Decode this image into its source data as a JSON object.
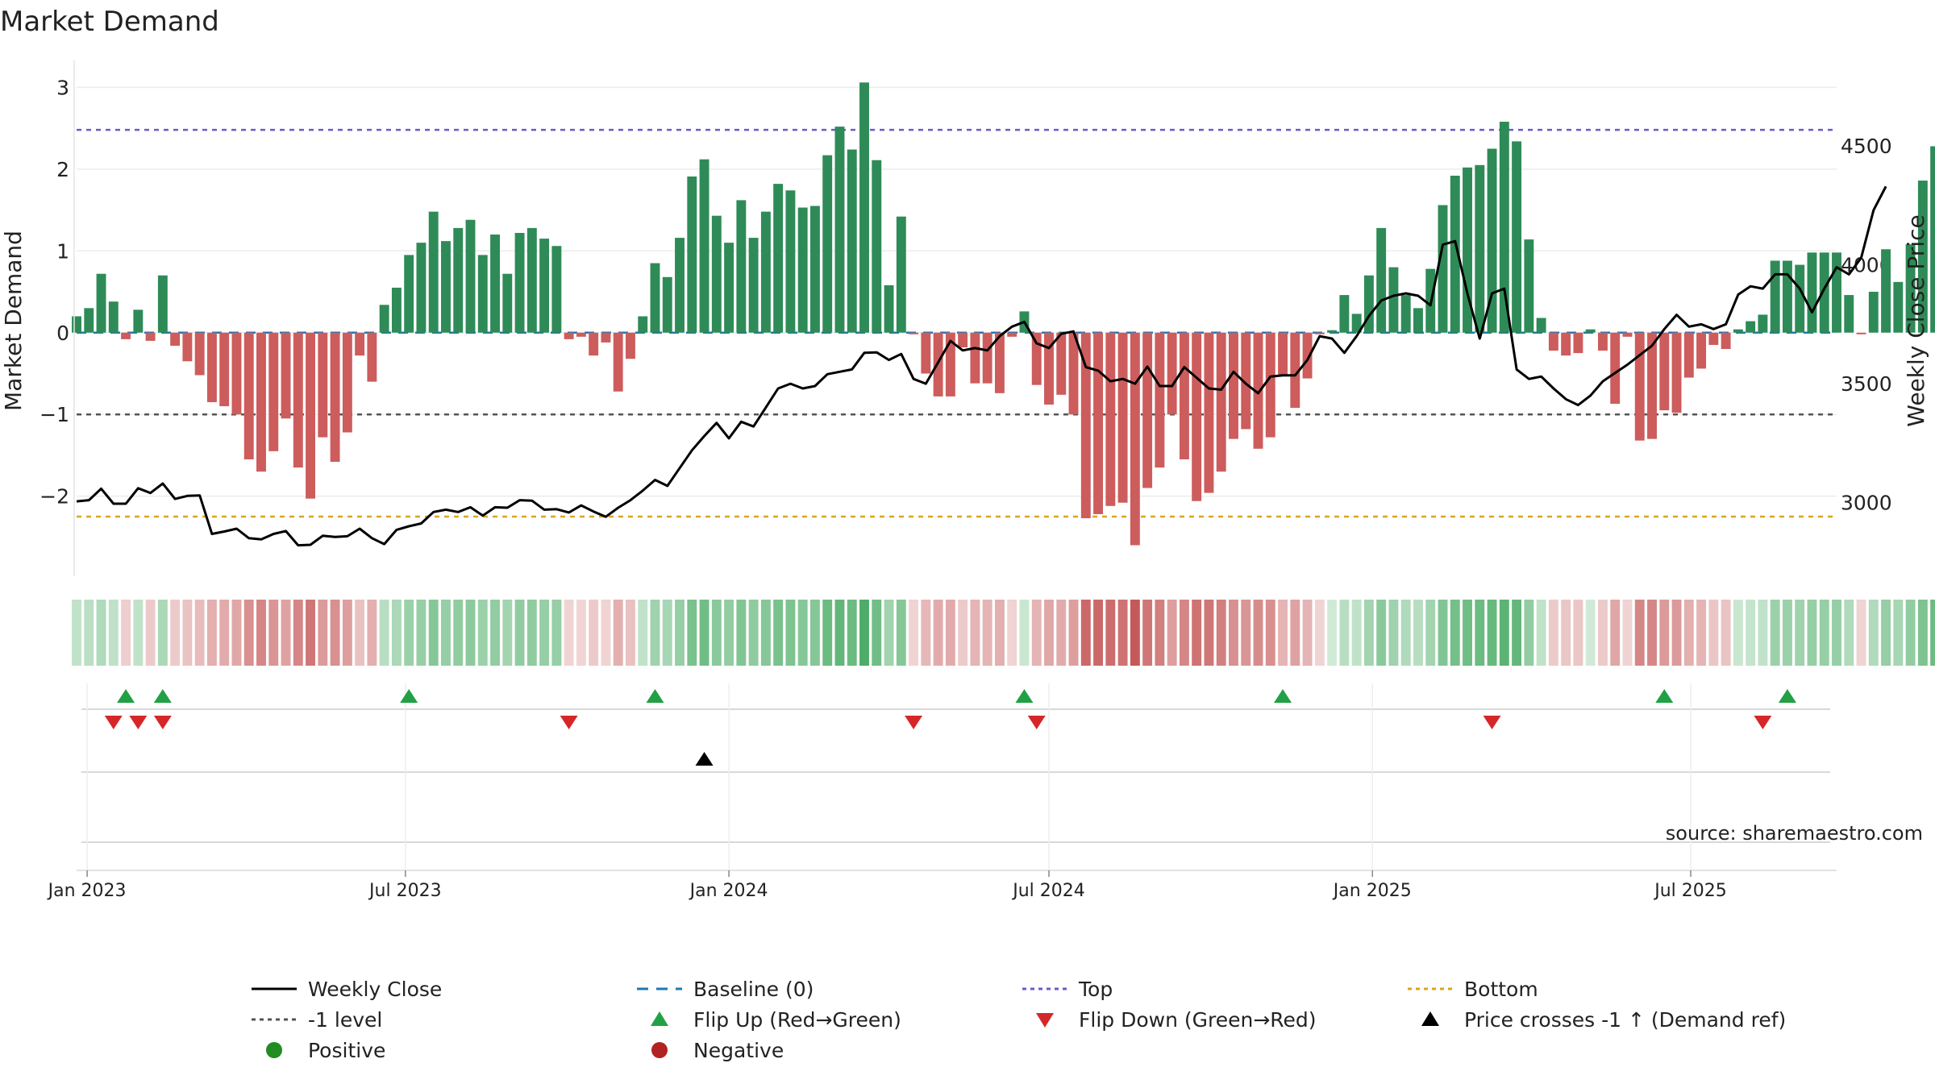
{
  "chart_data": {
    "type": "bar",
    "title": "Market Demand",
    "ylabel": "Market Demand",
    "y2label": "Weekly Close Price",
    "ylim": [
      -2.95,
      3.3
    ],
    "y2lim": [
      2700,
      4850
    ],
    "yticks": [
      3,
      2,
      1,
      0,
      -1,
      -2
    ],
    "ytick_labels": [
      "3",
      "2",
      "1",
      "0",
      "−1",
      "−2"
    ],
    "y2ticks": [
      4500,
      4000,
      3500,
      3000
    ],
    "y2tick_labels": [
      "4500",
      "4000",
      "3500",
      "3000"
    ],
    "x_start": "2022-12-26",
    "x_end": "2025-09-22",
    "xticks": [
      {
        "label": "Jan 2023",
        "date": "2023-01-01"
      },
      {
        "label": "Jul 2023",
        "date": "2023-07-01"
      },
      {
        "label": "Jan 2024",
        "date": "2024-01-01"
      },
      {
        "label": "Jul 2024",
        "date": "2024-07-01"
      },
      {
        "label": "Jan 2025",
        "date": "2025-01-01"
      },
      {
        "label": "Jul 2025",
        "date": "2025-07-01"
      }
    ],
    "weeks_start": "2022-12-26",
    "demand": [
      0.2,
      0.3,
      0.72,
      0.38,
      -0.08,
      0.28,
      -0.1,
      0.7,
      -0.16,
      -0.35,
      -0.52,
      -0.85,
      -0.9,
      -1.0,
      -1.55,
      -1.7,
      -1.45,
      -1.05,
      -1.65,
      -2.03,
      -1.28,
      -1.58,
      -1.22,
      -0.28,
      -0.6,
      0.34,
      0.55,
      0.95,
      1.1,
      1.48,
      1.12,
      1.28,
      1.38,
      0.95,
      1.2,
      0.72,
      1.22,
      1.28,
      1.15,
      1.06,
      -0.08,
      -0.05,
      -0.28,
      -0.12,
      -0.72,
      -0.32,
      0.2,
      0.85,
      0.68,
      1.16,
      1.91,
      2.12,
      1.43,
      1.1,
      1.62,
      1.16,
      1.48,
      1.82,
      1.74,
      1.53,
      1.55,
      2.17,
      2.52,
      2.24,
      3.06,
      2.11,
      0.58,
      1.42,
      -0.02,
      -0.5,
      -0.78,
      -0.78,
      -0.18,
      -0.62,
      -0.62,
      -0.74,
      -0.05,
      0.26,
      -0.64,
      -0.88,
      -0.76,
      -1.0,
      -2.27,
      -2.22,
      -2.12,
      -2.08,
      -2.6,
      -1.9,
      -1.65,
      -1.0,
      -1.55,
      -2.06,
      -1.96,
      -1.7,
      -1.3,
      -1.18,
      -1.42,
      -1.28,
      -0.52,
      -0.92,
      -0.56,
      -0.02,
      0.03,
      0.46,
      0.23,
      0.7,
      1.28,
      0.8,
      0.46,
      0.3,
      0.78,
      1.56,
      1.92,
      2.02,
      2.05,
      2.25,
      2.58,
      2.34,
      1.14,
      0.18,
      -0.22,
      -0.28,
      -0.25,
      0.04,
      -0.22,
      -0.87,
      -0.05,
      -1.32,
      -1.3,
      -0.95,
      -0.98,
      -0.55,
      -0.44,
      -0.15,
      -0.2,
      0.04,
      0.14,
      0.22,
      0.88,
      0.88,
      0.83,
      0.98,
      0.98,
      0.98,
      0.46,
      -0.02,
      0.5,
      1.02,
      0.62,
      1.08,
      1.86,
      2.28
    ],
    "weekly_close": [
      3005,
      3010,
      3058,
      2995,
      2995,
      3060,
      3040,
      3080,
      3015,
      3028,
      3030,
      2868,
      2878,
      2890,
      2850,
      2845,
      2868,
      2880,
      2820,
      2822,
      2860,
      2855,
      2858,
      2890,
      2850,
      2825,
      2885,
      2900,
      2912,
      2960,
      2970,
      2960,
      2980,
      2945,
      2980,
      2978,
      3010,
      3008,
      2970,
      2972,
      2958,
      2988,
      2962,
      2940,
      2978,
      3010,
      3050,
      3095,
      3070,
      3145,
      3220,
      3280,
      3335,
      3270,
      3340,
      3320,
      3400,
      3480,
      3500,
      3480,
      3490,
      3540,
      3550,
      3560,
      3630,
      3632,
      3600,
      3625,
      3520,
      3500,
      3590,
      3680,
      3640,
      3650,
      3640,
      3700,
      3740,
      3760,
      3670,
      3650,
      3710,
      3720,
      3570,
      3555,
      3510,
      3520,
      3500,
      3572,
      3490,
      3490,
      3570,
      3525,
      3480,
      3475,
      3550,
      3500,
      3460,
      3530,
      3535,
      3535,
      3600,
      3700,
      3690,
      3630,
      3700,
      3785,
      3850,
      3870,
      3880,
      3870,
      3830,
      4085,
      4100,
      3880,
      3690,
      3880,
      3900,
      3560,
      3520,
      3530,
      3480,
      3435,
      3410,
      3450,
      3510,
      3545,
      3580,
      3620,
      3660,
      3730,
      3790,
      3740,
      3750,
      3730,
      3750,
      3875,
      3910,
      3900,
      3960,
      3960,
      3900,
      3800,
      3900,
      3990,
      3960,
      4030,
      4230,
      4330
    ],
    "heat_alpha": [
      0.3,
      0.33,
      0.38,
      0.31,
      0.22,
      0.3,
      0.24,
      0.4,
      0.24,
      0.27,
      0.3,
      0.36,
      0.38,
      0.4,
      0.5,
      0.55,
      0.48,
      0.42,
      0.55,
      0.62,
      0.45,
      0.5,
      0.44,
      0.28,
      0.36,
      0.34,
      0.4,
      0.48,
      0.5,
      0.58,
      0.5,
      0.53,
      0.55,
      0.48,
      0.52,
      0.44,
      0.53,
      0.53,
      0.5,
      0.5,
      0.2,
      0.19,
      0.24,
      0.2,
      0.36,
      0.28,
      0.3,
      0.46,
      0.42,
      0.5,
      0.64,
      0.68,
      0.56,
      0.52,
      0.6,
      0.54,
      0.58,
      0.64,
      0.62,
      0.58,
      0.58,
      0.7,
      0.75,
      0.7,
      0.85,
      0.68,
      0.45,
      0.58,
      0.2,
      0.32,
      0.38,
      0.38,
      0.24,
      0.34,
      0.34,
      0.36,
      0.2,
      0.26,
      0.34,
      0.4,
      0.38,
      0.44,
      0.68,
      0.68,
      0.66,
      0.64,
      0.75,
      0.62,
      0.58,
      0.44,
      0.55,
      0.64,
      0.62,
      0.58,
      0.5,
      0.48,
      0.52,
      0.5,
      0.34,
      0.42,
      0.34,
      0.2,
      0.22,
      0.34,
      0.3,
      0.44,
      0.56,
      0.46,
      0.38,
      0.34,
      0.44,
      0.6,
      0.66,
      0.68,
      0.7,
      0.72,
      0.78,
      0.74,
      0.52,
      0.3,
      0.24,
      0.26,
      0.26,
      0.22,
      0.24,
      0.4,
      0.2,
      0.54,
      0.54,
      0.46,
      0.46,
      0.36,
      0.34,
      0.26,
      0.27,
      0.26,
      0.28,
      0.3,
      0.48,
      0.48,
      0.46,
      0.5,
      0.5,
      0.5,
      0.38,
      0.2,
      0.38,
      0.5,
      0.42,
      0.52,
      0.62,
      0.7
    ],
    "levels": {
      "top": 2.48,
      "minus_one": -1.0,
      "bottom": -2.25,
      "baseline": 0
    },
    "flip_up_weeks": [
      4,
      7,
      27,
      47,
      77,
      98,
      129,
      139
    ],
    "flip_down_weeks": [
      3,
      5,
      7,
      40,
      68,
      78,
      115,
      137
    ],
    "price_cross_weeks": [
      51
    ],
    "colors": {
      "positive_bar": "#2e8b57",
      "negative_bar": "#cd5c5c",
      "weekly_close": "#000000",
      "baseline": "#1f77b4",
      "top": "#6a5acd",
      "minus_one": "#555555",
      "bottom": "#daa520",
      "flip_up": "#22a045",
      "flip_down": "#d62728",
      "price_cross": "#000000",
      "positive_dot": "#228b22",
      "negative_dot": "#b22222",
      "heat_green": "#2e9e4c",
      "heat_red": "#b22222"
    },
    "legend": [
      {
        "label": "Weekly Close",
        "marker": "solid-line-icon",
        "color": "#000000"
      },
      {
        "label": "Baseline (0)",
        "marker": "dashed-line-icon",
        "color": "#1f77b4"
      },
      {
        "label": "Top",
        "marker": "dotted-line-icon",
        "color": "#6a5acd"
      },
      {
        "label": "Bottom",
        "marker": "dotted-line-icon",
        "color": "#daa520"
      },
      {
        "label": "-1 level",
        "marker": "dotted-line-icon",
        "color": "#555555"
      },
      {
        "label": "Flip Up (Red→Green)",
        "marker": "triangle-up-icon",
        "color": "#22a045"
      },
      {
        "label": "Flip Down (Green→Red)",
        "marker": "triangle-down-icon",
        "color": "#d62728"
      },
      {
        "label": "Price crosses -1 ↑ (Demand ref)",
        "marker": "triangle-up-icon",
        "color": "#000000"
      },
      {
        "label": "Positive",
        "marker": "circle-icon",
        "color": "#228b22"
      },
      {
        "label": "Negative",
        "marker": "circle-icon",
        "color": "#b22222"
      }
    ],
    "source": "source: sharemaestro.com"
  }
}
